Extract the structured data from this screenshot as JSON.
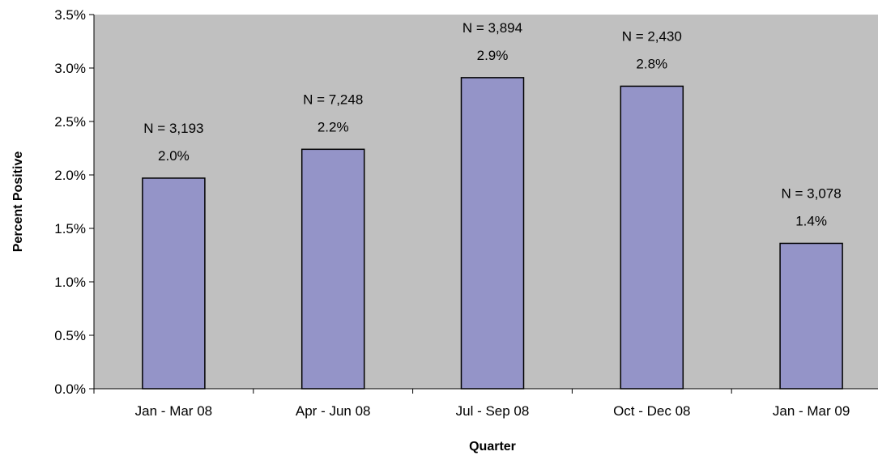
{
  "chart_data": {
    "type": "bar",
    "categories": [
      "Jan - Mar 08",
      "Apr - Jun 08",
      "Jul - Sep 08",
      "Oct - Dec 08",
      "Jan - Mar 09"
    ],
    "values": [
      1.97,
      2.24,
      2.91,
      2.83,
      1.36
    ],
    "data_labels": [
      "2.0%",
      "2.2%",
      "2.9%",
      "2.8%",
      "1.4%"
    ],
    "n_labels": [
      "N = 3,193",
      "N = 7,248",
      "N = 3,894",
      "N = 2,430",
      "N = 3,078"
    ],
    "xlabel": "Quarter",
    "ylabel": "Percent Positive",
    "ylim": [
      0,
      3.5
    ],
    "yticks": [
      "0.0%",
      "0.5%",
      "1.0%",
      "1.5%",
      "2.0%",
      "2.5%",
      "3.0%",
      "3.5%"
    ],
    "grid": false,
    "legend": "none",
    "colors": {
      "plot_background": "#c0c0c0",
      "bar_fill": "#9494c8",
      "bar_stroke": "#000000"
    }
  }
}
